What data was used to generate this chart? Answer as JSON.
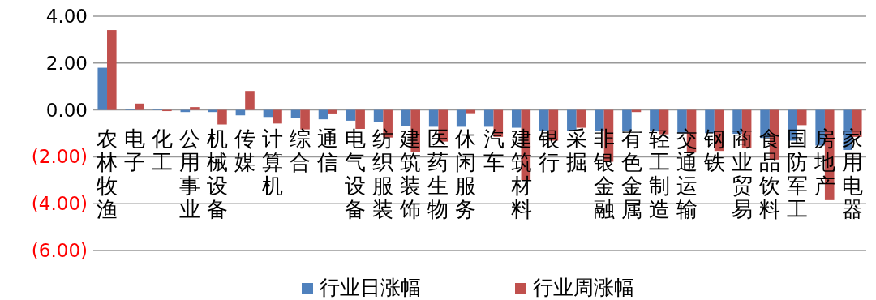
{
  "chart_data": {
    "type": "bar",
    "categories": [
      "农林牧渔",
      "电子",
      "化工",
      "公用事业",
      "机械设备",
      "传媒",
      "计算机",
      "综合",
      "通信",
      "电气设备",
      "纺织服装",
      "建筑装饰",
      "医药生物",
      "休闲服务",
      "汽车",
      "建筑材料",
      "银行",
      "采掘",
      "非银金融",
      "有色金属",
      "轻工制造",
      "交通运输",
      "钢铁",
      "商业贸易",
      "食品饮料",
      "国防军工",
      "房地产",
      "家用电器"
    ],
    "series": [
      {
        "name": "行业日涨幅",
        "color": "#4f81bd",
        "values": [
          1.8,
          0.05,
          0.05,
          -0.09,
          -0.09,
          -0.23,
          -0.3,
          -0.33,
          -0.4,
          -0.46,
          -0.53,
          -0.69,
          -0.72,
          -0.72,
          -0.72,
          -0.76,
          -0.88,
          -0.88,
          -0.9,
          -0.88,
          -0.92,
          -0.99,
          -0.99,
          -1.02,
          -1.2,
          -1.31,
          -1.52,
          -1.71
        ]
      },
      {
        "name": "行业周涨幅",
        "color": "#c0504d",
        "values": [
          3.41,
          0.27,
          -0.05,
          0.12,
          -0.62,
          0.81,
          -0.58,
          -0.83,
          -0.15,
          -0.81,
          -1.18,
          -1.78,
          -1.35,
          -0.14,
          -1.15,
          -3.0,
          -1.31,
          -0.76,
          -2.21,
          -0.09,
          -1.04,
          -1.82,
          -1.75,
          -1.62,
          -2.12,
          -0.65,
          -3.85,
          -1.15
        ]
      }
    ],
    "ylim": [
      -6,
      4
    ],
    "yticks": [
      {
        "value": -6,
        "label": "(6.00)"
      },
      {
        "value": -4,
        "label": "(4.00)"
      },
      {
        "value": -2,
        "label": "(2.00)"
      },
      {
        "value": 0,
        "label": "0.00"
      },
      {
        "value": 2,
        "label": "2.00"
      },
      {
        "value": 4,
        "label": "4.00"
      }
    ],
    "grid": "y",
    "legend": "bottom"
  }
}
